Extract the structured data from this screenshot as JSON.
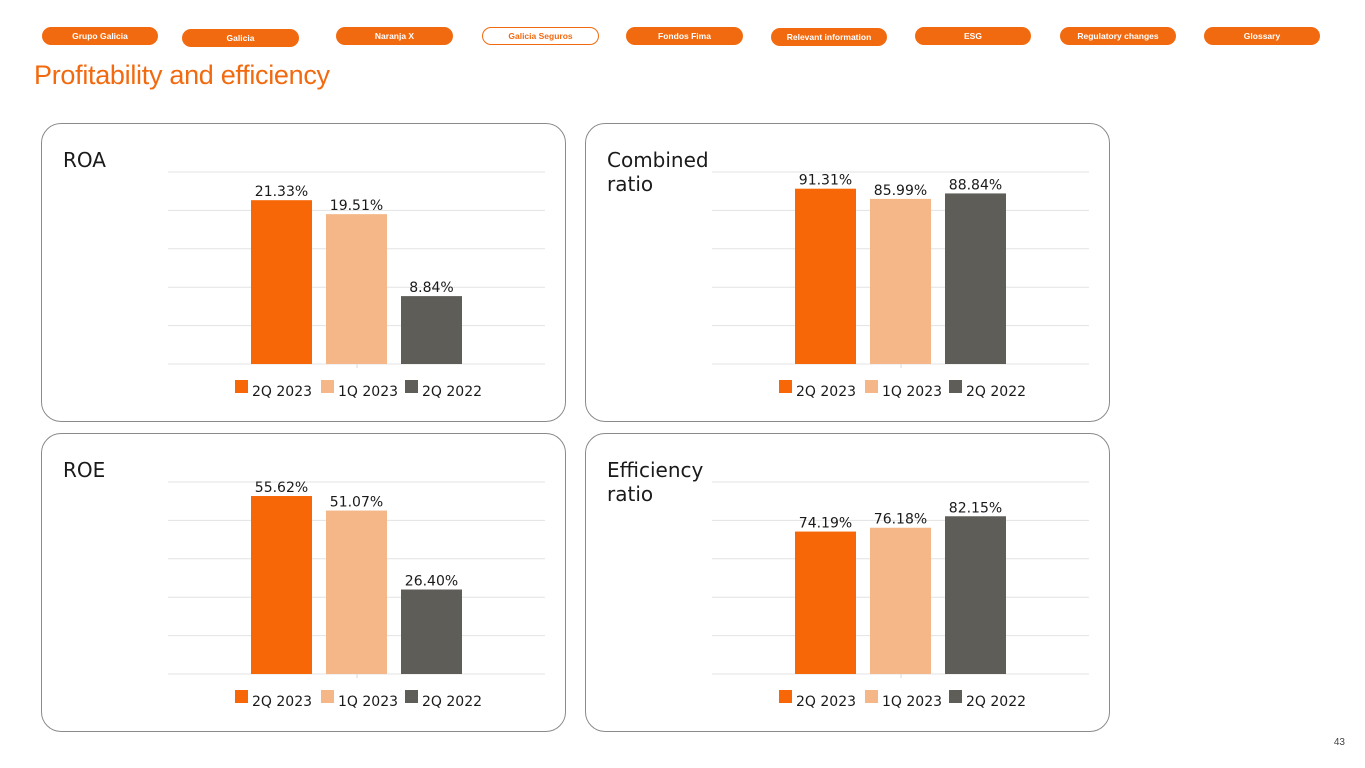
{
  "nav": {
    "items": [
      {
        "label": "Grupo Galicia",
        "active": false
      },
      {
        "label": "Galicia",
        "active": false
      },
      {
        "label": "Naranja X",
        "active": false
      },
      {
        "label": "Galicia Seguros",
        "active": true
      },
      {
        "label": "Fondos Fima",
        "active": false
      },
      {
        "label": "Relevant information",
        "active": false
      },
      {
        "label": "ESG",
        "active": false
      },
      {
        "label": "Regulatory changes",
        "active": false
      },
      {
        "label": "Glossary",
        "active": false
      }
    ]
  },
  "page": {
    "title": "Profitability and efficiency",
    "number": "43"
  },
  "colors": {
    "accent": "#f26a10",
    "series": [
      "#f76707",
      "#f5b688",
      "#5e5d57"
    ]
  },
  "chart_data": [
    {
      "type": "bar",
      "title": "ROA",
      "categories": [
        "2Q 2023",
        "1Q 2023",
        "2Q 2022"
      ],
      "values": [
        21.33,
        19.51,
        8.84
      ],
      "value_labels": [
        "21.33%",
        "19.51%",
        "8.84%"
      ],
      "ylim": [
        0,
        25
      ],
      "grid": true,
      "legend": "bottom"
    },
    {
      "type": "bar",
      "title": "Combined ratio",
      "categories": [
        "2Q 2023",
        "1Q 2023",
        "2Q 2022"
      ],
      "values": [
        91.31,
        85.99,
        88.84
      ],
      "value_labels": [
        "91.31%",
        "85.99%",
        "88.84%"
      ],
      "ylim": [
        0,
        100
      ],
      "grid": true,
      "legend": "bottom"
    },
    {
      "type": "bar",
      "title": "ROE",
      "categories": [
        "2Q 2023",
        "1Q 2023",
        "2Q 2022"
      ],
      "values": [
        55.62,
        51.07,
        26.4
      ],
      "value_labels": [
        "55.62%",
        "51.07%",
        "26.40%"
      ],
      "ylim": [
        0,
        60
      ],
      "grid": true,
      "legend": "bottom"
    },
    {
      "type": "bar",
      "title": "Efficiency ratio",
      "categories": [
        "2Q 2023",
        "1Q 2023",
        "2Q 2022"
      ],
      "values": [
        74.19,
        76.18,
        82.15
      ],
      "value_labels": [
        "74.19%",
        "76.18%",
        "82.15%"
      ],
      "ylim": [
        0,
        100
      ],
      "grid": true,
      "legend": "bottom"
    }
  ]
}
